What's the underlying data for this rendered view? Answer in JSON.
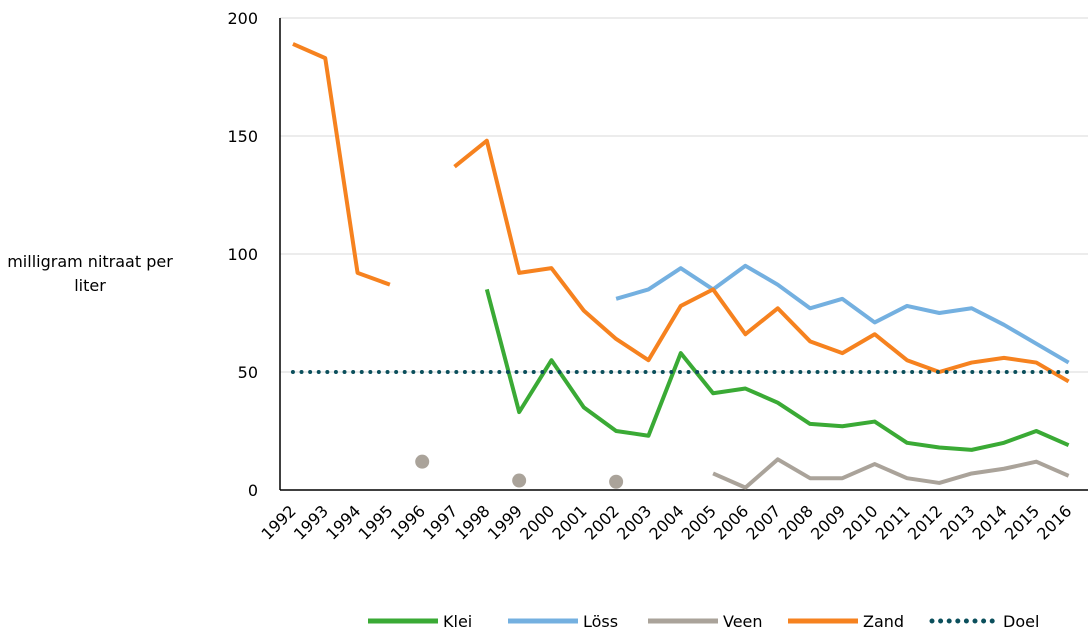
{
  "chart_data": {
    "type": "line",
    "y_label": "milligram nitraat per liter",
    "categories": [
      "1992",
      "1993",
      "1994",
      "1995",
      "1996",
      "1997",
      "1998",
      "1999",
      "2000",
      "2001",
      "2002",
      "2003",
      "2004",
      "2005",
      "2006",
      "2007",
      "2008",
      "2009",
      "2010",
      "2011",
      "2012",
      "2013",
      "2014",
      "2015",
      "2016"
    ],
    "ylim": [
      0,
      200
    ],
    "yticks": [
      0,
      50,
      100,
      150,
      200
    ],
    "grid": true,
    "series": [
      {
        "name": "Klei",
        "color": "#3aaa35",
        "values": [
          null,
          null,
          null,
          null,
          null,
          null,
          85,
          33,
          55,
          35,
          25,
          23,
          58,
          41,
          43,
          37,
          28,
          27,
          29,
          20,
          18,
          17,
          20,
          25,
          19
        ]
      },
      {
        "name": "Löss",
        "color": "#74b0e0",
        "values": [
          null,
          null,
          null,
          null,
          null,
          null,
          null,
          null,
          null,
          null,
          81,
          85,
          94,
          85,
          95,
          87,
          77,
          81,
          71,
          78,
          75,
          77,
          70,
          62,
          54
        ]
      },
      {
        "name": "Veen",
        "color": "#aaa39a",
        "values": [
          null,
          null,
          null,
          null,
          12,
          null,
          null,
          4,
          null,
          null,
          3.5,
          null,
          null,
          7,
          1,
          13,
          5,
          5,
          11,
          5,
          3,
          7,
          9,
          12,
          6
        ]
      },
      {
        "name": "Zand",
        "color": "#f6821f",
        "values": [
          189,
          183,
          92,
          87,
          null,
          137,
          148,
          92,
          94,
          76,
          64,
          55,
          78,
          85,
          66,
          77,
          63,
          58,
          66,
          55,
          50,
          54,
          56,
          54,
          46
        ]
      },
      {
        "name": "Doel",
        "color": "#0b4f5c",
        "dotted": true,
        "values": [
          50,
          50,
          50,
          50,
          50,
          50,
          50,
          50,
          50,
          50,
          50,
          50,
          50,
          50,
          50,
          50,
          50,
          50,
          50,
          50,
          50,
          50,
          50,
          50,
          50
        ]
      }
    ]
  }
}
